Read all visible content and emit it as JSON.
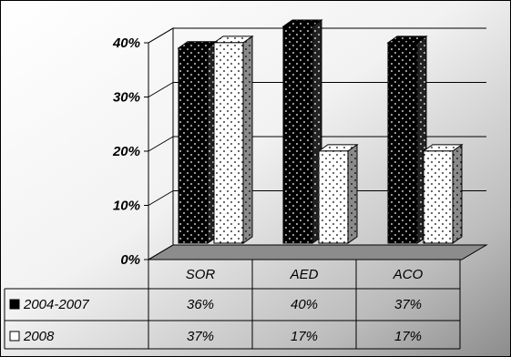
{
  "chart_data": {
    "type": "bar",
    "categories": [
      "SOR",
      "AED",
      "ACO"
    ],
    "series": [
      {
        "name": "2004-2007",
        "values": [
          36,
          40,
          37
        ],
        "labels": [
          "36%",
          "40%",
          "37%"
        ],
        "color": "#000000",
        "pattern": "dots-white-on-black",
        "legend_marker": "■"
      },
      {
        "name": "2008",
        "values": [
          37,
          17,
          17
        ],
        "labels": [
          "37%",
          "17%",
          "17%"
        ],
        "color": "#ffffff",
        "pattern": "dots-black-on-white",
        "legend_marker": "□"
      }
    ],
    "y_ticks": [
      {
        "value": 0,
        "label": "0%"
      },
      {
        "value": 10,
        "label": "10%"
      },
      {
        "value": 20,
        "label": "20%"
      },
      {
        "value": 30,
        "label": "30%"
      },
      {
        "value": 40,
        "label": "40%"
      }
    ],
    "ylim": [
      0,
      40
    ],
    "grid": true,
    "three_d": true,
    "data_table": true,
    "background": "gradient-white-to-gray",
    "title": "",
    "xlabel": "",
    "ylabel": ""
  }
}
